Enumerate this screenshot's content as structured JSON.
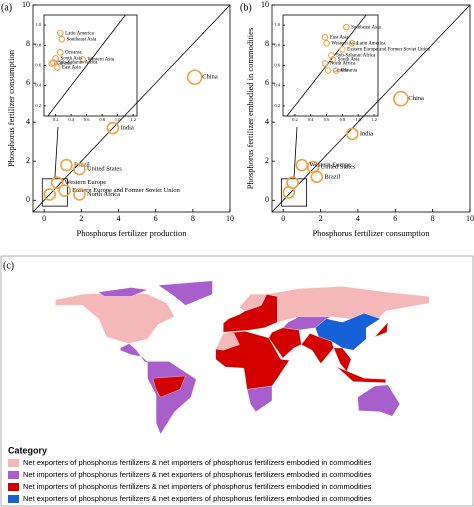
{
  "chart_data": [
    {
      "type": "scatter",
      "panel_label": "(a)",
      "x_label": "Phosphorus fertilizer production",
      "y_label": "Phosphorus fertilizer consumption",
      "color": "#f0a040",
      "xlim": [
        -0.6,
        10
      ],
      "ylim": [
        -0.6,
        10
      ],
      "xticks": [
        0,
        2,
        4,
        6,
        8,
        10
      ],
      "yticks": [
        0,
        2,
        4,
        6,
        8,
        10
      ],
      "x": [
        8.1,
        3.7,
        1.2,
        1.9,
        0.7,
        1.1,
        1.9,
        0.3
      ],
      "values": [
        6.3,
        3.7,
        1.8,
        1.6,
        0.9,
        0.5,
        0.3,
        0.3
      ],
      "labels": [
        "China",
        "India",
        "Brazil",
        "United States",
        "Western Europe",
        "Eastern Europe and Former Soviet Union",
        "North Africa",
        null
      ],
      "inset": {
        "xlim": [
          0.05,
          1.25
        ],
        "ylim": [
          0.1,
          1.1
        ],
        "xticks": [
          0.2,
          0.4,
          0.6,
          {
            "value": 0.8,
            "label": "0.8"
          },
          {
            "value": 1,
            "label": "1.0"
          },
          1.2
        ],
        "yticks": [
          0.2,
          0.4,
          0.6,
          0.8,
          {
            "value": 1,
            "label": "1.0"
          }
        ],
        "x": [
          0.26,
          0.28,
          0.26,
          0.2,
          0.55,
          0.17,
          0.22,
          0.15
        ],
        "values": [
          0.92,
          0.86,
          0.73,
          0.67,
          0.66,
          0.63,
          0.58,
          0.62
        ],
        "labels": [
          "Latin America",
          "Southeast Asia",
          "Oceania",
          "South Asia",
          "Western Asia",
          "Sub-Saharan Africa",
          "East Asia",
          "Canada"
        ]
      }
    },
    {
      "type": "scatter",
      "panel_label": "(b)",
      "x_label": "Phosphorus fertilizer consumption",
      "y_label": "Phosphorus fertilizer embodied in commodities",
      "color": "#f0a040",
      "xlim": [
        -0.6,
        10
      ],
      "ylim": [
        -0.6,
        10
      ],
      "xticks": [
        0,
        2,
        4,
        6,
        8,
        10
      ],
      "yticks": [
        0,
        2,
        4,
        6,
        8,
        10
      ],
      "x": [
        6.3,
        3.7,
        1.6,
        1.0,
        1.8,
        0.5,
        0.3
      ],
      "values": [
        5.2,
        3.4,
        1.7,
        1.8,
        1.2,
        0.9,
        0.4
      ],
      "labels": [
        "China",
        "India",
        "United States",
        "Western Europe",
        "Brazil",
        null,
        null
      ],
      "inset": {
        "xlim": [
          0.05,
          1.25
        ],
        "ylim": [
          0.1,
          1.1
        ],
        "xticks": [
          0.2,
          0.4,
          0.6,
          0.8,
          {
            "value": 1,
            "label": "1.0"
          },
          1.2
        ],
        "yticks": [
          0.2,
          0.4,
          0.6,
          0.8,
          {
            "value": 1,
            "label": "1.0"
          }
        ],
        "x": [
          0.85,
          0.58,
          0.6,
          0.92,
          0.8,
          0.68,
          0.58,
          0.62,
          0.72,
          0.66
        ],
        "values": [
          0.98,
          0.88,
          0.82,
          0.82,
          0.76,
          0.66,
          0.62,
          0.55,
          0.55,
          0.7
        ],
        "labels": [
          "Southeast Asia",
          "East Asia",
          "Western Asia",
          "Latin America",
          "Eastern Europe and Former Soviet Union",
          "South Asia",
          "North Africa",
          "Canada",
          "Oceania",
          "Sub-Saharan Africa"
        ]
      }
    }
  ],
  "map": {
    "panel_label": "(c)",
    "legend_title": "Category",
    "legend": [
      {
        "name": "Net exporters of phosphorus fertilizers & net importers of phosphorus fertilizers embodied in commodities",
        "color": "#f5b8b8"
      },
      {
        "name": "Net importers of phosphorus fertilizers & net exporters of phosphorus fertilizers embodied in commodities",
        "color": "#a85fcb"
      },
      {
        "name": "Net importers of phosphorus fertilizers & net importers of phosphorus fertilizers embodied in commodities",
        "color": "#d40000"
      },
      {
        "name": "Net exporters of phosphorus fertilizers & net exporters of phosphorus fertilizers embodied in commodities",
        "color": "#1660d8"
      }
    ]
  }
}
